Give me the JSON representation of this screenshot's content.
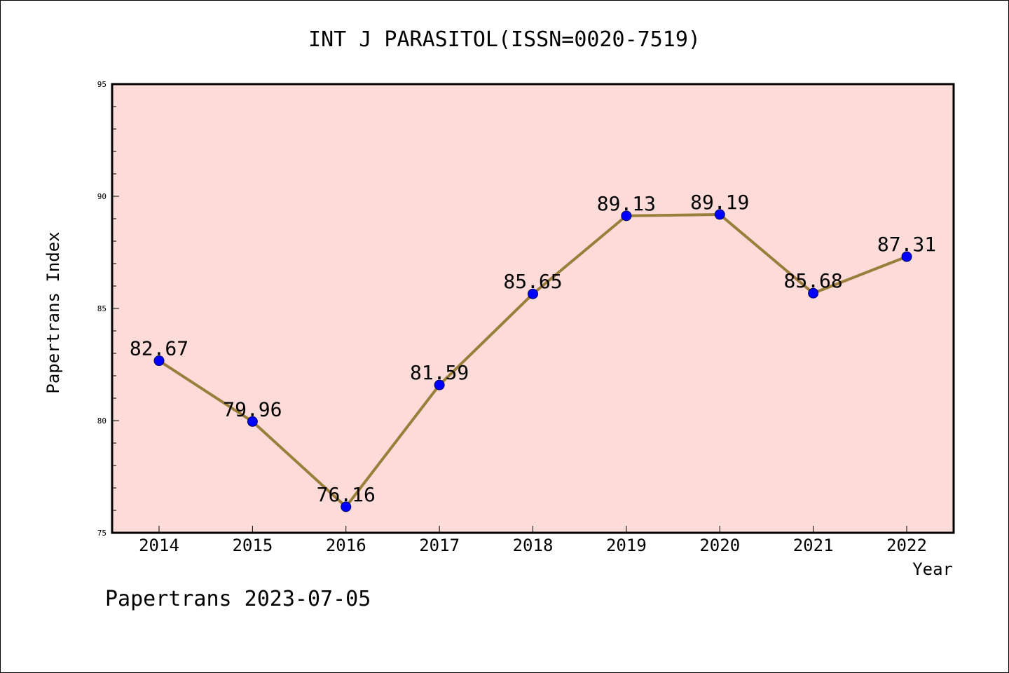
{
  "chart_data": {
    "type": "line",
    "title": "INT J PARASITOL(ISSN=0020-7519)",
    "xlabel": "Year",
    "ylabel": "Papertrans Index",
    "footer": "Papertrans 2023-07-05",
    "categories": [
      "2014",
      "2015",
      "2016",
      "2017",
      "2018",
      "2019",
      "2020",
      "2021",
      "2022"
    ],
    "series": [
      {
        "values": [
          82.67,
          79.96,
          76.16,
          81.59,
          85.65,
          89.13,
          89.19,
          85.68,
          87.31
        ],
        "labels": [
          "82.67",
          "79.96",
          "76.16",
          "81.59",
          "85.65",
          "89.13",
          "89.19",
          "85.68",
          "87.31"
        ]
      }
    ],
    "ylim": [
      75,
      95
    ],
    "y_major_ticks": [
      75,
      80,
      85,
      90,
      95
    ],
    "y_major_tick_labels": [
      "75",
      "80",
      "85",
      "90",
      "95"
    ],
    "y_minor_step": 1,
    "grid": false,
    "legend": "none",
    "colors": {
      "plot_background": "#fddbd8",
      "line": "#9a7f3c",
      "marker": "#0000ff",
      "axis": "#000000",
      "text": "#000000"
    }
  }
}
